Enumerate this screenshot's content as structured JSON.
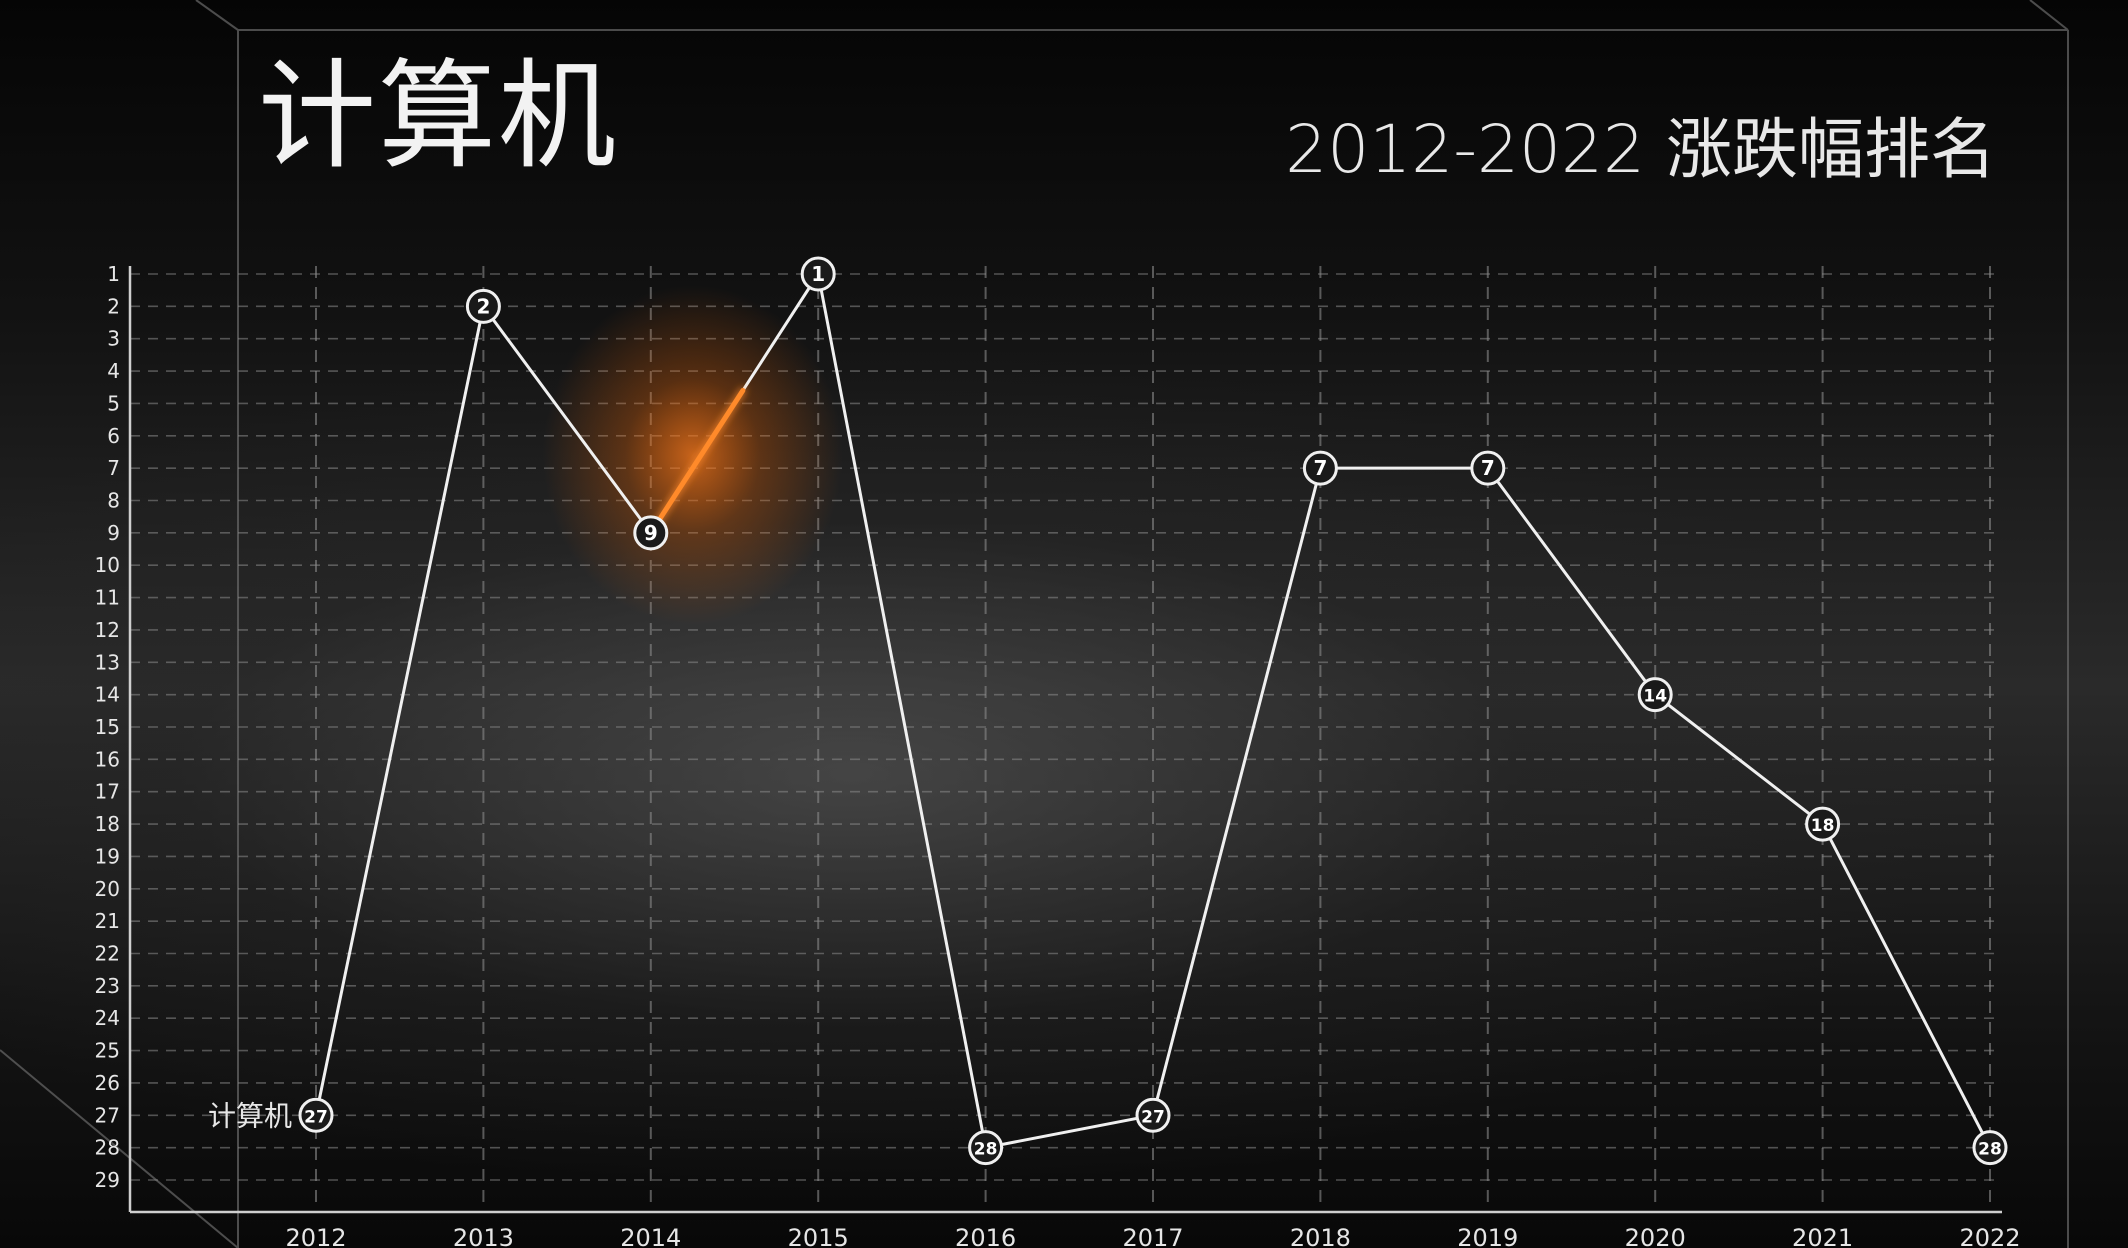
{
  "chart_data": {
    "type": "line",
    "title": "计算机",
    "subtitle": "2012-2022 涨跌幅排名",
    "xlabel": "",
    "ylabel": "",
    "x": [
      "2012",
      "2013",
      "2014",
      "2015",
      "2016",
      "2017",
      "2018",
      "2019",
      "2020",
      "2021",
      "2022"
    ],
    "series": [
      {
        "name": "计算机",
        "values": [
          27,
          2,
          9,
          1,
          28,
          27,
          7,
          7,
          14,
          18,
          28
        ]
      }
    ],
    "y_ticks": [
      "1",
      "2",
      "3",
      "4",
      "5",
      "6",
      "7",
      "8",
      "9",
      "10",
      "11",
      "12",
      "13",
      "14",
      "15",
      "16",
      "17",
      "18",
      "19",
      "20",
      "21",
      "22",
      "23",
      "24",
      "25",
      "26",
      "27",
      "28",
      "29"
    ],
    "ylim": [
      1,
      29
    ],
    "y_inverted": true,
    "grid": true,
    "grid_style": "dashed",
    "highlight_segment": [
      "2014",
      "2015"
    ],
    "colors": {
      "line": "#f0f0f0",
      "highlight": "#ff8a2a",
      "grid": "#8a8a8a",
      "text": "#e6e6e6",
      "marker_fill": "#1a1a1a"
    }
  }
}
